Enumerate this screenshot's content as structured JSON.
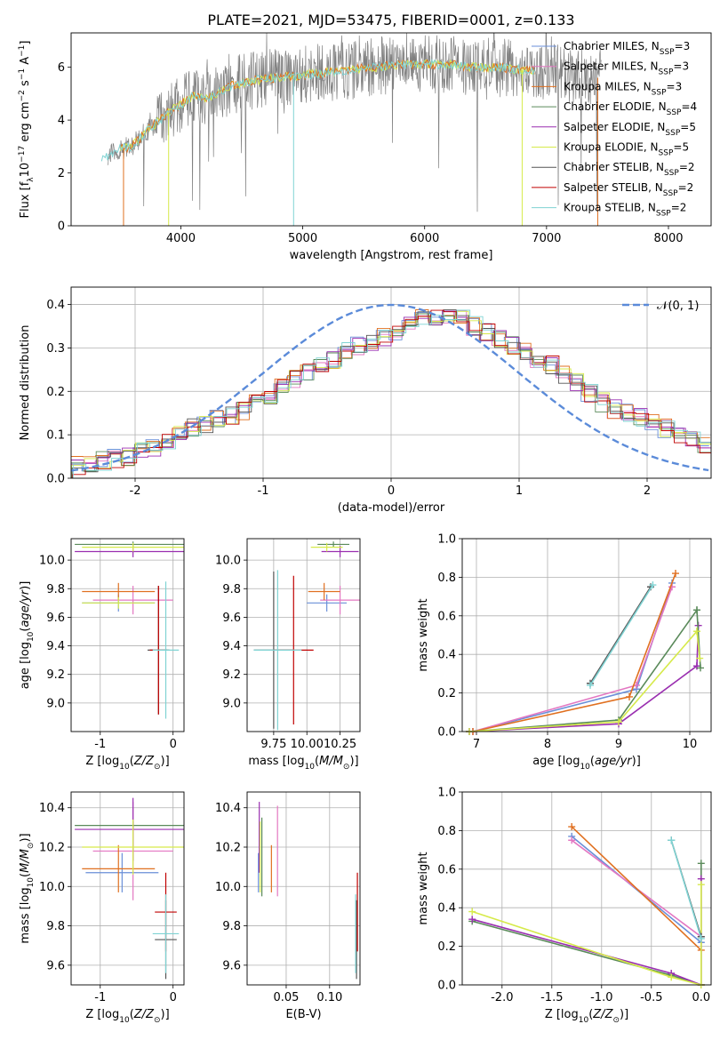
{
  "figure": {
    "title": "PLATE=2021, MJD=53475, FIBERID=0001, z=0.133"
  },
  "colors": {
    "Chabrier MILES": "#6a8fd8",
    "Salpeter MILES": "#e377c2",
    "Kroupa MILES": "#e07020",
    "Chabrier ELODIE": "#5a8a5a",
    "Salpeter ELODIE": "#9a2fb0",
    "Kroupa ELODIE": "#d6ea4a",
    "Chabrier STELIB": "#555555",
    "Salpeter STELIB": "#c00000",
    "Kroupa STELIB": "#7fd3d3",
    "data": "#808080",
    "normal": "#5b8bd9"
  },
  "chart_data": [
    {
      "id": "spectrum",
      "type": "line",
      "title": "PLATE=2021, MJD=53475, FIBERID=0001, z=0.133",
      "xlabel": "wavelength [Angstrom, rest frame]",
      "ylabel": "Flux [f_λ 10^-17 erg cm^-2 s^-1 A^-1]",
      "xlim": [
        3100,
        8350
      ],
      "ylim": [
        0,
        7.3
      ],
      "xticks": [
        4000,
        5000,
        6000,
        7000,
        8000
      ],
      "yticks": [
        0,
        2,
        4,
        6
      ],
      "grid": false,
      "legend_position": "top-right",
      "legend": [
        "Chabrier MILES, N_SSP=3",
        "Salpeter MILES, N_SSP=3",
        "Kroupa MILES, N_SSP=3",
        "Chabrier ELODIE, N_SSP=4",
        "Salpeter ELODIE, N_SSP=5",
        "Kroupa ELODIE, N_SSP=5",
        "Chabrier STELIB, N_SSP=2",
        "Salpeter STELIB, N_SSP=2",
        "Kroupa STELIB, N_SSP=2"
      ],
      "continuum": {
        "x": [
          3350,
          3500,
          3600,
          3700,
          3800,
          3900,
          4000,
          4100,
          4200,
          4300,
          4400,
          4600,
          4800,
          5000,
          5200,
          5400,
          5600,
          5800,
          6000,
          6200,
          6400,
          6600,
          6800,
          7000,
          7200,
          7400
        ],
        "y": [
          2.5,
          2.9,
          3.0,
          3.5,
          3.9,
          4.3,
          4.6,
          4.9,
          4.8,
          5.0,
          5.3,
          5.5,
          5.6,
          5.7,
          5.8,
          5.9,
          6.0,
          6.1,
          6.1,
          6.1,
          6.0,
          6.0,
          5.9,
          5.8,
          5.7,
          5.6
        ]
      }
    },
    {
      "id": "residuals",
      "type": "bar",
      "xlabel": "(data-model)/error",
      "ylabel": "Normed distribution",
      "xlim": [
        -2.5,
        2.5
      ],
      "ylim": [
        0,
        0.44
      ],
      "xticks": [
        -2,
        -1,
        0,
        1,
        2
      ],
      "yticks": [
        0.0,
        0.1,
        0.2,
        0.3,
        0.4
      ],
      "grid": true,
      "legend_position": "top-right",
      "normal_label": "𝒩(0, 1)",
      "bin_width": 0.1,
      "bin_start": -2.5,
      "mean_hist": [
        0.03,
        0.035,
        0.04,
        0.045,
        0.05,
        0.06,
        0.07,
        0.085,
        0.1,
        0.115,
        0.125,
        0.135,
        0.145,
        0.155,
        0.17,
        0.19,
        0.21,
        0.23,
        0.245,
        0.26,
        0.275,
        0.29,
        0.305,
        0.315,
        0.325,
        0.34,
        0.355,
        0.37,
        0.375,
        0.38,
        0.365,
        0.35,
        0.335,
        0.32,
        0.305,
        0.29,
        0.275,
        0.26,
        0.24,
        0.22,
        0.195,
        0.175,
        0.16,
        0.15,
        0.14,
        0.13,
        0.115,
        0.1,
        0.09,
        0.075
      ],
      "normal_pdf_sigma": 1
    },
    {
      "id": "age-vs-Z",
      "type": "scatter",
      "xlabel": "Z [log10(Z/Z⊙)]",
      "ylabel": "age  [log10(age/yr)]",
      "xlim": [
        -1.4,
        0.15
      ],
      "ylim": [
        8.8,
        10.15
      ],
      "xticks": [
        -1,
        0
      ],
      "yticks": [
        9.0,
        9.2,
        9.4,
        9.6,
        9.8,
        10.0
      ],
      "grid": true,
      "points": [
        {
          "model": "Chabrier MILES",
          "x": -0.75,
          "xerr": 0.5,
          "y": 9.7,
          "yerr": 0.06
        },
        {
          "model": "Salpeter MILES",
          "x": -0.55,
          "xerr": 0.55,
          "y": 9.72,
          "yerr": 0.1
        },
        {
          "model": "Kroupa MILES",
          "x": -0.75,
          "xerr": 0.5,
          "y": 9.78,
          "yerr": 0.06
        },
        {
          "model": "Chabrier ELODIE",
          "x": -0.55,
          "xerr": 0.8,
          "y": 10.11,
          "yerr": 0.02
        },
        {
          "model": "Salpeter ELODIE",
          "x": -0.55,
          "xerr": 0.8,
          "y": 10.06,
          "yerr": 0.04
        },
        {
          "model": "Kroupa ELODIE",
          "x": -0.55,
          "xerr": 0.7,
          "y": 10.09,
          "yerr": 0.03
        },
        {
          "model": "Chabrier STELIB",
          "x": -0.2,
          "xerr": 0.15,
          "y": 9.37,
          "yerr": 0.45
        },
        {
          "model": "Salpeter STELIB",
          "x": -0.2,
          "xerr": 0.12,
          "y": 9.37,
          "yerr": 0.45
        },
        {
          "model": "Kroupa STELIB",
          "x": -0.1,
          "xerr": 0.18,
          "y": 9.37,
          "yerr": 0.48
        },
        {
          "model": "Kroupa ELODIE",
          "x": -0.75,
          "xerr": 0.5,
          "y": 9.7,
          "yerr": 0.04
        }
      ]
    },
    {
      "id": "age-vs-mass",
      "type": "scatter",
      "xlabel": "mass [log10(M/M⊙)]",
      "ylabel": "",
      "xlim": [
        9.55,
        10.4
      ],
      "ylim": [
        8.8,
        10.15
      ],
      "xticks": [
        9.75,
        10.0,
        10.25
      ],
      "yticks": [
        9.0,
        9.2,
        9.4,
        9.6,
        9.8,
        10.0
      ],
      "grid": true,
      "points": [
        {
          "model": "Chabrier MILES",
          "x": 10.15,
          "xerr": 0.15,
          "y": 9.7,
          "yerr": 0.06
        },
        {
          "model": "Salpeter MILES",
          "x": 10.25,
          "xerr": 0.15,
          "y": 9.72,
          "yerr": 0.1
        },
        {
          "model": "Kroupa MILES",
          "x": 10.13,
          "xerr": 0.12,
          "y": 9.78,
          "yerr": 0.06
        },
        {
          "model": "Chabrier ELODIE",
          "x": 10.2,
          "xerr": 0.12,
          "y": 10.11,
          "yerr": 0.02
        },
        {
          "model": "Salpeter ELODIE",
          "x": 10.25,
          "xerr": 0.14,
          "y": 10.06,
          "yerr": 0.04
        },
        {
          "model": "Kroupa ELODIE",
          "x": 10.15,
          "xerr": 0.12,
          "y": 10.09,
          "yerr": 0.03
        },
        {
          "model": "Chabrier STELIB",
          "x": 9.75,
          "xerr": 0.15,
          "y": 9.37,
          "yerr": 0.55
        },
        {
          "model": "Salpeter STELIB",
          "x": 9.9,
          "xerr": 0.15,
          "y": 9.37,
          "yerr": 0.52
        },
        {
          "model": "Kroupa STELIB",
          "x": 9.78,
          "xerr": 0.18,
          "y": 9.37,
          "yerr": 0.56
        }
      ]
    },
    {
      "id": "mass-weight-vs-age",
      "type": "line",
      "xlabel": "age  [log10(age/yr)]",
      "ylabel": "mass weight",
      "xlim": [
        6.8,
        10.3
      ],
      "ylim": [
        0.0,
        1.0
      ],
      "xticks": [
        7,
        8,
        9,
        10
      ],
      "yticks": [
        0.0,
        0.2,
        0.4,
        0.6,
        0.8,
        1.0
      ],
      "grid": true,
      "series": [
        {
          "model": "Chabrier MILES",
          "x": [
            6.95,
            9.25,
            9.75
          ],
          "y": [
            0.0,
            0.22,
            0.77
          ]
        },
        {
          "model": "Salpeter MILES",
          "x": [
            6.95,
            9.25,
            9.75
          ],
          "y": [
            0.0,
            0.24,
            0.75
          ]
        },
        {
          "model": "Kroupa MILES",
          "x": [
            6.95,
            9.15,
            9.8
          ],
          "y": [
            0.0,
            0.18,
            0.82
          ]
        },
        {
          "model": "Chabrier ELODIE",
          "x": [
            6.9,
            9.0,
            10.1
          ],
          "y": [
            0.0,
            0.06,
            0.63
          ]
        },
        {
          "model": "Salpeter ELODIE",
          "x": [
            6.9,
            9.0,
            10.1
          ],
          "y": [
            0.0,
            0.04,
            0.34
          ]
        },
        {
          "model": "Kroupa ELODIE",
          "x": [
            6.9,
            9.0,
            10.1
          ],
          "y": [
            0.0,
            0.05,
            0.52
          ]
        },
        {
          "model": "Chabrier STELIB",
          "x": [
            8.6,
            9.45
          ],
          "y": [
            0.25,
            0.75
          ]
        },
        {
          "model": "Kroupa STELIB",
          "x": [
            8.6,
            9.48
          ],
          "y": [
            0.24,
            0.76
          ]
        },
        {
          "model": "Salpeter ELODIE",
          "x": [
            10.1,
            10.12
          ],
          "y": [
            0.34,
            0.55
          ]
        },
        {
          "model": "Chabrier ELODIE",
          "x": [
            10.1,
            10.15
          ],
          "y": [
            0.63,
            0.33
          ]
        },
        {
          "model": "Kroupa ELODIE",
          "x": [
            10.1,
            10.14
          ],
          "y": [
            0.52,
            0.38
          ]
        }
      ]
    },
    {
      "id": "mass-vs-Z",
      "type": "scatter",
      "xlabel": "Z [log10(Z/Z⊙)]",
      "ylabel": "mass [log10(M/M⊙)]",
      "xlim": [
        -1.4,
        0.15
      ],
      "ylim": [
        9.5,
        10.48
      ],
      "xticks": [
        -1,
        0
      ],
      "yticks": [
        9.6,
        9.8,
        10.0,
        10.2,
        10.4
      ],
      "grid": true,
      "points": [
        {
          "model": "Chabrier MILES",
          "x": -0.7,
          "xerr": 0.5,
          "y": 10.07,
          "yerr": 0.1
        },
        {
          "model": "Salpeter MILES",
          "x": -0.55,
          "xerr": 0.55,
          "y": 10.18,
          "yerr": 0.25
        },
        {
          "model": "Kroupa MILES",
          "x": -0.75,
          "xerr": 0.5,
          "y": 10.09,
          "yerr": 0.12
        },
        {
          "model": "Chabrier ELODIE",
          "x": -0.55,
          "xerr": 0.8,
          "y": 10.31,
          "yerr": 0.02
        },
        {
          "model": "Salpeter ELODIE",
          "x": -0.55,
          "xerr": 0.8,
          "y": 10.29,
          "yerr": 0.16
        },
        {
          "model": "Kroupa ELODIE",
          "x": -0.55,
          "xerr": 0.7,
          "y": 10.2,
          "yerr": 0.14
        },
        {
          "model": "Chabrier STELIB",
          "x": -0.1,
          "xerr": 0.15,
          "y": 9.73,
          "yerr": 0.2
        },
        {
          "model": "Salpeter STELIB",
          "x": -0.1,
          "xerr": 0.15,
          "y": 9.87,
          "yerr": 0.2
        },
        {
          "model": "Kroupa STELIB",
          "x": -0.1,
          "xerr": 0.18,
          "y": 9.76,
          "yerr": 0.2
        }
      ]
    },
    {
      "id": "mass-vs-EBV",
      "type": "scatter",
      "xlabel": "E(B-V)",
      "ylabel": "",
      "xlim": [
        0.005,
        0.135
      ],
      "ylim": [
        9.5,
        10.48
      ],
      "xticks": [
        0.05,
        0.1
      ],
      "yticks": [
        9.6,
        9.8,
        10.0,
        10.2,
        10.4
      ],
      "grid": true,
      "points": [
        {
          "model": "Chabrier MILES",
          "x": 0.018,
          "y": 10.07,
          "yerr": 0.1
        },
        {
          "model": "Salpeter MILES",
          "x": 0.04,
          "y": 10.18,
          "yerr": 0.23
        },
        {
          "model": "Kroupa MILES",
          "x": 0.033,
          "y": 10.09,
          "yerr": 0.12
        },
        {
          "model": "Chabrier ELODIE",
          "x": 0.022,
          "y": 10.15,
          "yerr": 0.2
        },
        {
          "model": "Salpeter ELODIE",
          "x": 0.019,
          "y": 10.25,
          "yerr": 0.18
        },
        {
          "model": "Kroupa ELODIE",
          "x": 0.02,
          "y": 10.15,
          "yerr": 0.18
        },
        {
          "model": "Chabrier STELIB",
          "x": 0.131,
          "y": 9.73,
          "yerr": 0.2
        },
        {
          "model": "Salpeter STELIB",
          "x": 0.132,
          "y": 9.87,
          "yerr": 0.2
        },
        {
          "model": "Kroupa STELIB",
          "x": 0.13,
          "y": 9.76,
          "yerr": 0.2
        }
      ]
    },
    {
      "id": "mass-weight-vs-Z",
      "type": "line",
      "xlabel": "Z [log10(Z/Z⊙)]",
      "ylabel": "mass weight",
      "xlim": [
        -2.4,
        0.1
      ],
      "ylim": [
        0.0,
        1.0
      ],
      "xticks": [
        -2.0,
        -1.5,
        -1.0,
        -0.5,
        0.0
      ],
      "yticks": [
        0.0,
        0.2,
        0.4,
        0.6,
        0.8,
        1.0
      ],
      "grid": true,
      "series": [
        {
          "model": "Chabrier MILES",
          "x": [
            -1.3,
            0.0
          ],
          "y": [
            0.77,
            0.22
          ]
        },
        {
          "model": "Salpeter MILES",
          "x": [
            -1.3,
            0.0
          ],
          "y": [
            0.75,
            0.25
          ]
        },
        {
          "model": "Kroupa MILES",
          "x": [
            -1.3,
            0.0
          ],
          "y": [
            0.82,
            0.18
          ]
        },
        {
          "model": "Chabrier ELODIE",
          "x": [
            -2.3,
            -0.3,
            0.0,
            0.0
          ],
          "y": [
            0.33,
            0.05,
            0.0,
            0.63
          ]
        },
        {
          "model": "Salpeter ELODIE",
          "x": [
            -2.3,
            -0.3,
            0.0,
            0.0
          ],
          "y": [
            0.34,
            0.06,
            0.0,
            0.55
          ]
        },
        {
          "model": "Kroupa ELODIE",
          "x": [
            -2.3,
            -0.3,
            0.0,
            0.0
          ],
          "y": [
            0.38,
            0.04,
            0.0,
            0.52
          ]
        },
        {
          "model": "Chabrier STELIB",
          "x": [
            -0.3,
            0.0
          ],
          "y": [
            0.75,
            0.25
          ]
        },
        {
          "model": "Kroupa STELIB",
          "x": [
            -0.3,
            0.0
          ],
          "y": [
            0.75,
            0.24
          ]
        }
      ]
    }
  ]
}
